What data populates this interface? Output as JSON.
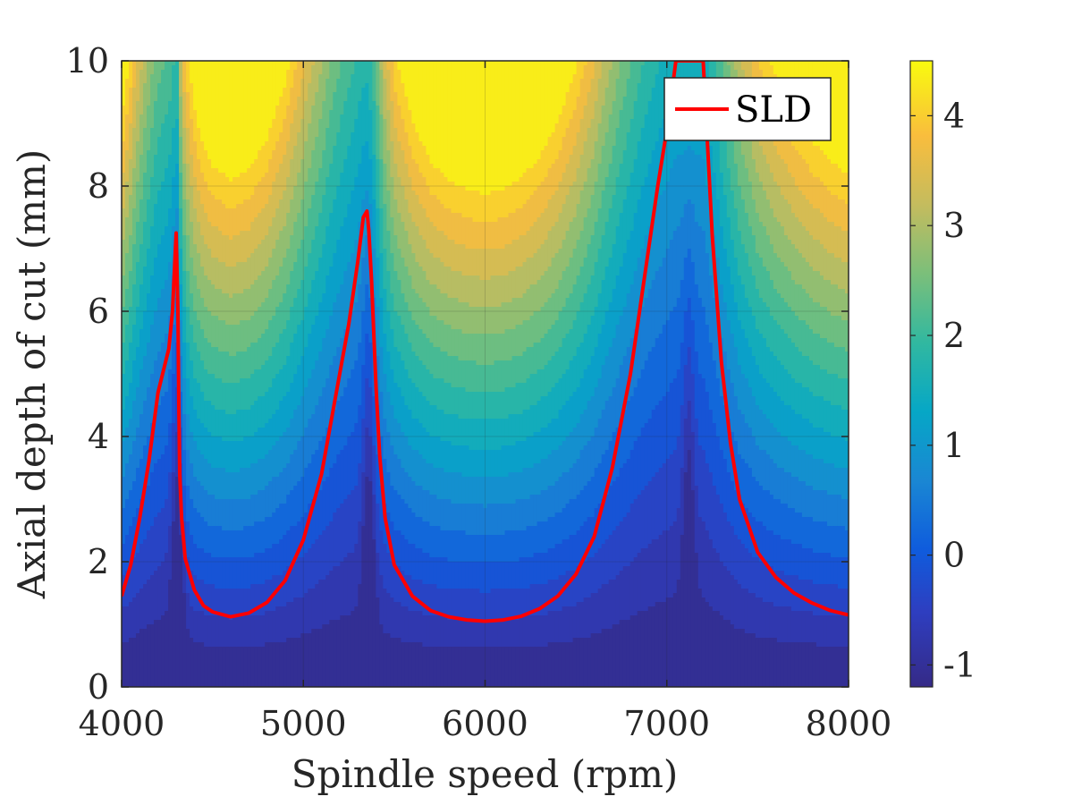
{
  "chart_data": {
    "type": "contour",
    "title": "",
    "xlabel": "Spindle speed (rpm)",
    "ylabel": "Axial depth of cut (mm)",
    "xlim": [
      4000,
      8000
    ],
    "ylim": [
      0,
      10
    ],
    "x_ticks": [
      "4000",
      "5000",
      "6000",
      "7000",
      "8000"
    ],
    "y_ticks": [
      "0",
      "2",
      "4",
      "6",
      "8",
      "10"
    ],
    "grid": true,
    "legend": {
      "position": "top-right",
      "entries": [
        {
          "label": "SLD",
          "color": "#ff0000"
        }
      ]
    },
    "colorbar": {
      "range": [
        -1.2,
        4.5
      ],
      "ticks": [
        "-1",
        "0",
        "1",
        "2",
        "3",
        "4"
      ],
      "colormap": "parula"
    },
    "sld_series": {
      "name": "SLD",
      "color": "#ff0000",
      "x": [
        4000,
        4050,
        4100,
        4150,
        4200,
        4230,
        4260,
        4280,
        4300,
        4310,
        4315,
        4320,
        4330,
        4350,
        4400,
        4450,
        4500,
        4600,
        4700,
        4800,
        4900,
        5000,
        5100,
        5200,
        5250,
        5300,
        5330,
        5350,
        5360,
        5375,
        5400,
        5420,
        5450,
        5500,
        5600,
        5700,
        5800,
        5900,
        6000,
        6100,
        6200,
        6300,
        6400,
        6500,
        6600,
        6700,
        6800,
        6900,
        6950,
        7000,
        7050,
        7080,
        7100,
        7120,
        7150,
        7200,
        7250,
        7300,
        7350,
        7400,
        7500,
        7600,
        7700,
        7800,
        7900,
        8000
      ],
      "y": [
        1.45,
        1.95,
        2.7,
        3.6,
        4.7,
        5.05,
        5.4,
        6.0,
        7.25,
        6.0,
        4.5,
        3.4,
        2.7,
        2.05,
        1.55,
        1.3,
        1.2,
        1.12,
        1.18,
        1.35,
        1.7,
        2.35,
        3.4,
        5.0,
        5.8,
        6.8,
        7.5,
        7.6,
        7.3,
        6.5,
        4.8,
        3.7,
        2.7,
        1.95,
        1.45,
        1.22,
        1.12,
        1.07,
        1.05,
        1.07,
        1.13,
        1.25,
        1.45,
        1.8,
        2.4,
        3.5,
        5.0,
        7.0,
        8.0,
        8.9,
        10.0,
        10.0,
        10.0,
        10.0,
        10.0,
        10.0,
        7.2,
        5.2,
        3.9,
        3.0,
        2.15,
        1.75,
        1.5,
        1.34,
        1.22,
        1.15
      ]
    },
    "stable_min_depths_mm": [
      1.12,
      1.05,
      1.15
    ],
    "lobe_peak_speeds_rpm": [
      4310,
      5360,
      7120
    ]
  }
}
